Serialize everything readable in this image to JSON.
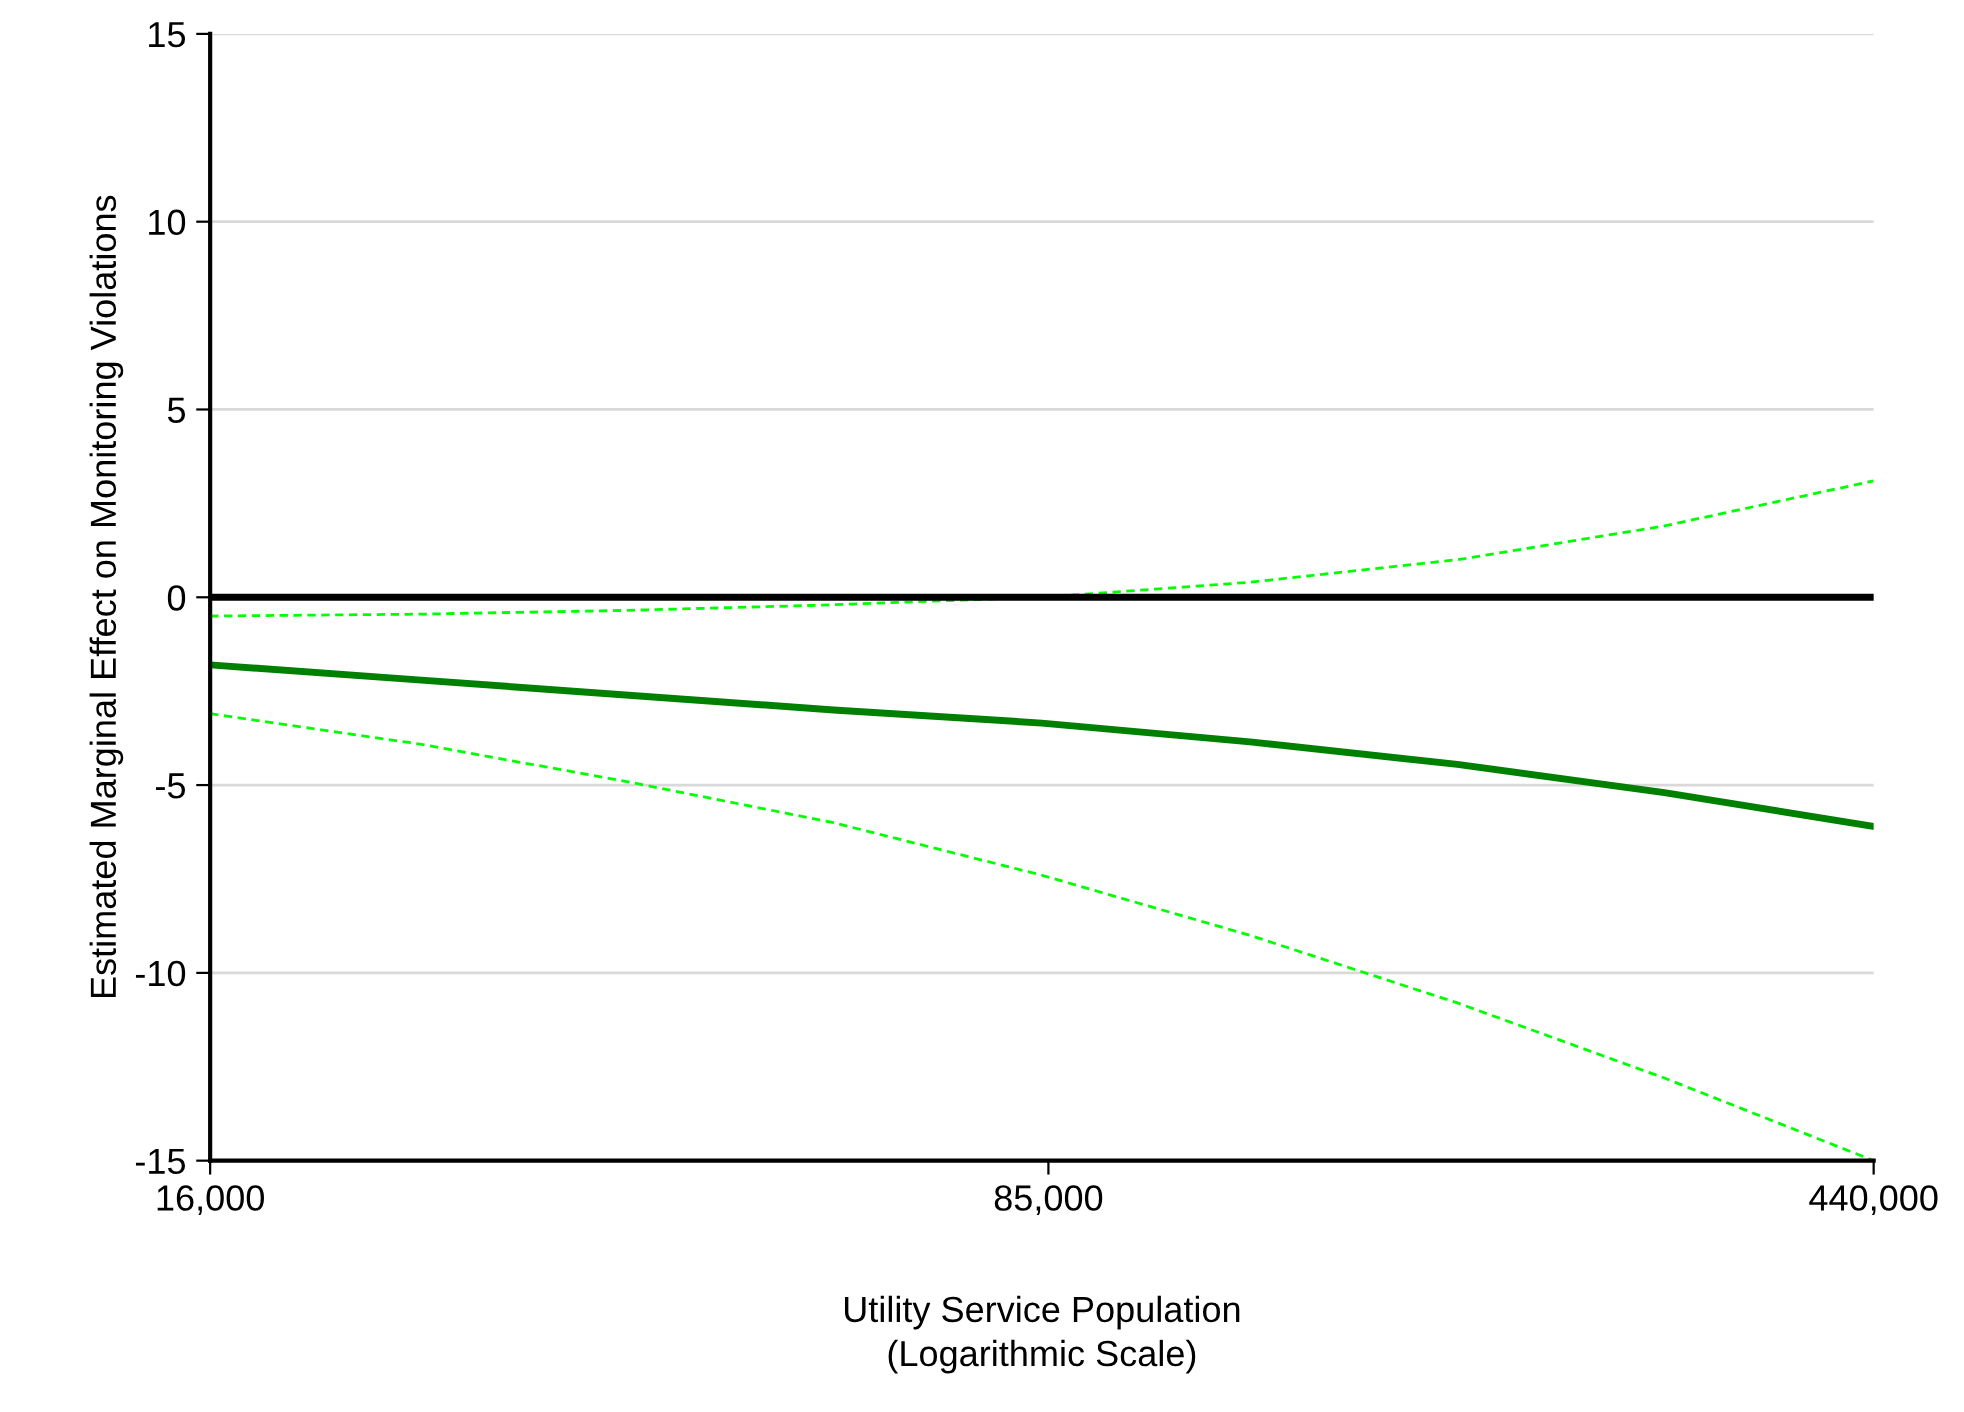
{
  "chart_data": {
    "type": "line",
    "xlabel": "Utility Service Population\n(Logarithmic Scale)",
    "ylabel": "Estimated Marginal Effect on Monitoring Violations",
    "log": "x",
    "xlim": [
      16000,
      440000
    ],
    "xticks": [
      {
        "value": 16000,
        "label": "16,000"
      },
      {
        "value": 85000,
        "label": "85,000"
      },
      {
        "value": 440000,
        "label": "440,000"
      }
    ],
    "ylim": [
      -15,
      15
    ],
    "yticks": [
      -15,
      -10,
      -5,
      0,
      5,
      10,
      15
    ],
    "grid": "y",
    "x": [
      16000,
      24200,
      36600,
      55400,
      83900,
      127000,
      192000,
      290000,
      440000
    ],
    "series": [
      {
        "color": "#00ff00",
        "line_style": "dashed",
        "values": [
          -0.5,
          -0.45,
          -0.35,
          -0.2,
          0.0,
          0.4,
          1.0,
          1.9,
          3.1
        ]
      },
      {
        "color": "#008000",
        "line_style": "solid",
        "values": [
          -1.8,
          -2.2,
          -2.6,
          -3.0,
          -3.35,
          -3.85,
          -4.45,
          -5.2,
          -6.1
        ]
      },
      {
        "color": "#00ff00",
        "line_style": "dashed",
        "values": [
          -3.1,
          -3.9,
          -4.9,
          -6.0,
          -7.4,
          -9.0,
          -10.8,
          -12.8,
          -15.0
        ]
      }
    ],
    "ref_lines": [
      {
        "axis": "y",
        "value": 0,
        "color": "#000000",
        "line_style": "solid"
      }
    ]
  }
}
